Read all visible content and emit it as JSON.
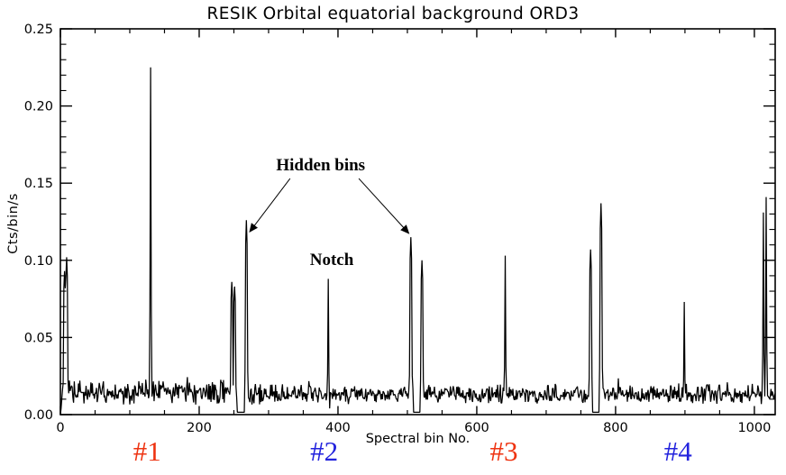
{
  "chart_data": {
    "type": "line",
    "title": "RESIK Orbital equatorial background ORD3",
    "xlabel": "Spectral bin No.",
    "ylabel": "Cts/bin/s",
    "xlim": [
      0,
      1030
    ],
    "ylim": [
      0,
      0.25
    ],
    "x_tick_values": [
      0,
      200,
      400,
      600,
      800,
      1000
    ],
    "x_tick_labels": [
      "0",
      "200",
      "400",
      "600",
      "800",
      "1000"
    ],
    "x_minor_interval": 50,
    "y_tick_values": [
      0,
      0.05,
      0.1,
      0.15,
      0.2,
      0.25
    ],
    "y_tick_labels": [
      "0.00",
      "0.05",
      "0.10",
      "0.15",
      "0.20",
      "0.25"
    ],
    "y_minor_interval": 0.01,
    "grid": false,
    "legend": "none",
    "line_color": "#000000",
    "background_color": "#ffffff",
    "baseline": {
      "mean": 0.013,
      "noise_halfwidth": 0.007,
      "description": "flat noisy background ~0.01-0.02 Cts/bin/s across all 1024 spectral bins"
    },
    "zero_gaps": [
      [
        255,
        265
      ],
      [
        509,
        518
      ],
      [
        767,
        776
      ]
    ],
    "peaks": [
      {
        "bin": 6,
        "value": 0.093,
        "shape": "column"
      },
      {
        "bin": 9,
        "value": 0.102,
        "shape": "column"
      },
      {
        "bin": 130,
        "value": 0.225,
        "shape": "narrow"
      },
      {
        "bin": 247,
        "value": 0.086,
        "shape": "column"
      },
      {
        "bin": 251,
        "value": 0.083,
        "shape": "column"
      },
      {
        "bin": 268,
        "value": 0.126,
        "shape": "column",
        "note": "hidden bin"
      },
      {
        "bin": 386,
        "value": 0.088,
        "shape": "narrow",
        "note": "notch"
      },
      {
        "bin": 505,
        "value": 0.115,
        "shape": "column",
        "note": "hidden bin"
      },
      {
        "bin": 521,
        "value": 0.1,
        "shape": "column"
      },
      {
        "bin": 641,
        "value": 0.103,
        "shape": "narrow"
      },
      {
        "bin": 764,
        "value": 0.107,
        "shape": "column"
      },
      {
        "bin": 779,
        "value": 0.137,
        "shape": "column"
      },
      {
        "bin": 899,
        "value": 0.073,
        "shape": "narrow"
      },
      {
        "bin": 1013,
        "value": 0.131,
        "shape": "narrow"
      },
      {
        "bin": 1017,
        "value": 0.141,
        "shape": "narrow"
      }
    ],
    "dips": [
      {
        "bin": 388,
        "value": 0.004
      }
    ],
    "annotations": [
      {
        "text": "Hidden bins",
        "bin": 375,
        "value": 0.161
      },
      {
        "text": "Notch",
        "bin": 391,
        "value": 0.1
      }
    ],
    "arrows": [
      {
        "from_bin": 331,
        "from_value": 0.153,
        "to_bin": 272,
        "to_value": 0.118
      },
      {
        "from_bin": 430,
        "from_value": 0.153,
        "to_bin": 503,
        "to_value": 0.117
      }
    ],
    "quadrant_labels": [
      {
        "text": "#1",
        "bin": 125,
        "color": "#ee3311"
      },
      {
        "text": "#2",
        "bin": 380,
        "color": "#2222dd"
      },
      {
        "text": "#3",
        "bin": 639,
        "color": "#ee3311"
      },
      {
        "text": "#4",
        "bin": 890,
        "color": "#2222dd"
      }
    ]
  }
}
